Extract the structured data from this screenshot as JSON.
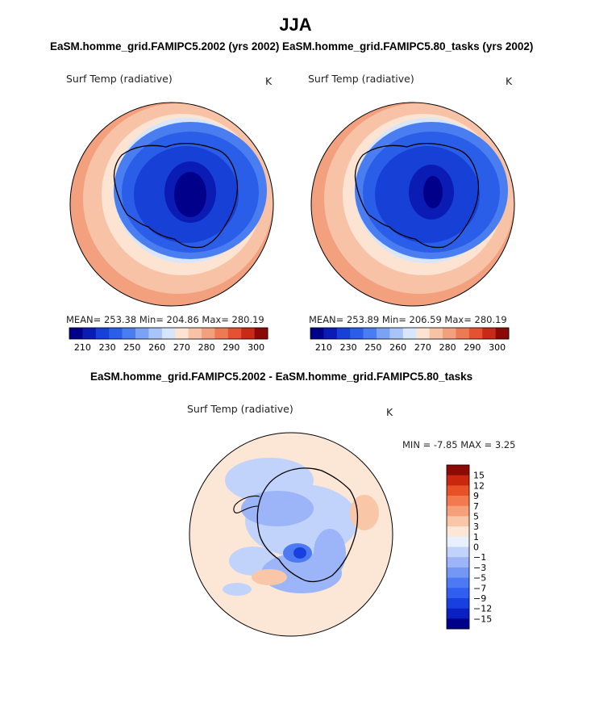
{
  "page": {
    "title": "JJA",
    "subtitle_left": "EaSM.homme_grid.FAMIPC5.2002 (yrs 2002)",
    "subtitle_right": "EaSM.homme_grid.FAMIPC5.80_tasks (yrs 2002)",
    "subtitle_diff": "EaSM.homme_grid.FAMIPC5.2002 - EaSM.homme_grid.FAMIPC5.80_tasks"
  },
  "panels": {
    "left": {
      "var_label": "Surf Temp (radiative)",
      "units": "K",
      "stats": "MEAN= 253.38   Min= 204.86   Max= 280.19"
    },
    "right": {
      "var_label": "Surf Temp (radiative)",
      "units": "K",
      "stats": "MEAN= 253.89   Min= 206.59   Max= 280.19"
    },
    "diff": {
      "var_label": "Surf Temp (radiative)",
      "units": "K",
      "stats": "MIN =   -7.85  MAX =    3.25"
    }
  },
  "colors": {
    "abs_scale": [
      "#00008b",
      "#0a1cb4",
      "#1740d6",
      "#2a5ee8",
      "#4a7ef0",
      "#7aa2f5",
      "#a8c4f8",
      "#d7e6fb",
      "#fde3d2",
      "#f8c2a7",
      "#f3a07f",
      "#ee7a55",
      "#e55233",
      "#c92a18",
      "#8b0a08"
    ],
    "diff_scale": [
      "#00008b",
      "#0a20c0",
      "#1840e0",
      "#2f5ef0",
      "#4d7af3",
      "#7497f5",
      "#9bb5f8",
      "#c2d3fb",
      "#e8f0fd",
      "#fce6d6",
      "#f9c6a8",
      "#f6a07a",
      "#f27a4e",
      "#e85026",
      "#c9280e",
      "#8b0a05"
    ]
  },
  "chart_data": [
    {
      "type": "heatmap",
      "title": "EaSM.homme_grid.FAMIPC5.2002 (yrs 2002)",
      "variable": "Surf Temp (radiative)",
      "units": "K",
      "projection": "south-polar stereographic",
      "stats": {
        "mean": 253.38,
        "min": 204.86,
        "max": 280.19
      },
      "colorbar_tick_labels": [
        "210",
        "230",
        "250",
        "260",
        "270",
        "280",
        "290",
        "300"
      ],
      "colorbar_ticks": [
        210,
        230,
        250,
        260,
        270,
        280,
        290,
        300
      ]
    },
    {
      "type": "heatmap",
      "title": "EaSM.homme_grid.FAMIPC5.80_tasks (yrs 2002)",
      "variable": "Surf Temp (radiative)",
      "units": "K",
      "projection": "south-polar stereographic",
      "stats": {
        "mean": 253.89,
        "min": 206.59,
        "max": 280.19
      },
      "colorbar_tick_labels": [
        "210",
        "230",
        "250",
        "260",
        "270",
        "280",
        "290",
        "300"
      ],
      "colorbar_ticks": [
        210,
        230,
        250,
        260,
        270,
        280,
        290,
        300
      ]
    },
    {
      "type": "heatmap",
      "title": "EaSM.homme_grid.FAMIPC5.2002 - EaSM.homme_grid.FAMIPC5.80_tasks",
      "variable": "Surf Temp (radiative)",
      "units": "K",
      "projection": "south-polar stereographic",
      "stats": {
        "min": -7.85,
        "max": 3.25
      },
      "colorbar_tick_labels": [
        "15",
        "12",
        "9",
        "7",
        "5",
        "3",
        "1",
        "0",
        "−1",
        "−3",
        "−5",
        "−7",
        "−9",
        "−12",
        "−15"
      ],
      "colorbar_ticks": [
        15,
        12,
        9,
        7,
        5,
        3,
        1,
        0,
        -1,
        -3,
        -5,
        -7,
        -9,
        -12,
        -15
      ]
    }
  ]
}
